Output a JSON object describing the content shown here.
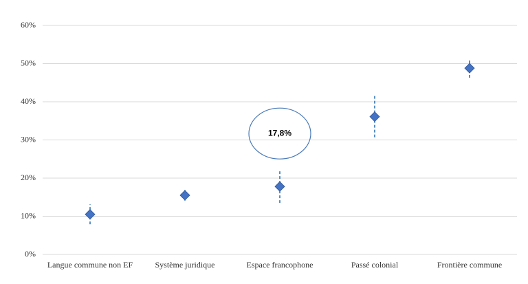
{
  "chart_data": {
    "type": "errorbar",
    "categories": [
      "Langue commune non EF",
      "Système juridique",
      "Espace francophone",
      "Passé colonial",
      "Frontière commune"
    ],
    "values": [
      10.5,
      15.5,
      17.8,
      36.1,
      48.8
    ],
    "errors": [
      2.6,
      1.4,
      4.3,
      5.4,
      2.5
    ],
    "value_labels": [
      null,
      null,
      "17,8%",
      null,
      null
    ],
    "color": "#4472c4",
    "error_color": "#2e75b6",
    "ylim": [
      0,
      60
    ],
    "yticks": [
      {
        "value": 0,
        "label": "0%"
      },
      {
        "value": 10,
        "label": "10%"
      },
      {
        "value": 20,
        "label": "20%"
      },
      {
        "value": 30,
        "label": "30%"
      },
      {
        "value": 40,
        "label": "40%"
      },
      {
        "value": 50,
        "label": "50%"
      },
      {
        "value": 60,
        "label": "60%"
      }
    ],
    "grid": true
  }
}
